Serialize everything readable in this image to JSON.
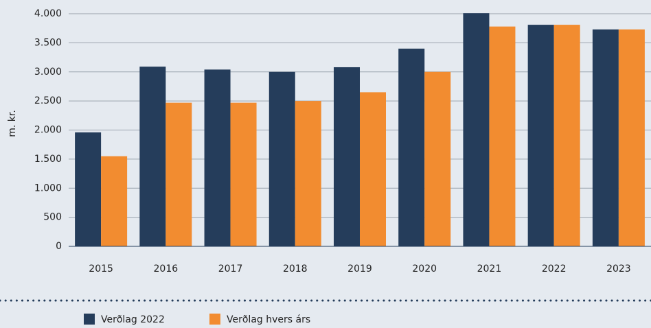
{
  "chart_data": {
    "type": "bar",
    "y_label": "m. kr.",
    "categories": [
      "2015",
      "2016",
      "2017",
      "2018",
      "2019",
      "2020",
      "2021",
      "2022",
      "2023"
    ],
    "series": [
      {
        "name": "Verðlag 2022",
        "color": "#253d5b",
        "values": [
          1960,
          3090,
          3040,
          3000,
          3080,
          3400,
          4010,
          3810,
          3730
        ]
      },
      {
        "name": "Verðlag hvers árs",
        "color": "#f28c30",
        "values": [
          1550,
          2470,
          2470,
          2500,
          2650,
          3000,
          3780,
          3810,
          3730
        ]
      }
    ],
    "ylim": [
      0,
      4000
    ],
    "yticks": [
      0,
      500,
      {
        "value": 1000,
        "label": "1.000"
      },
      {
        "value": 1500,
        "label": "1.500"
      },
      {
        "value": 2000,
        "label": "2.000"
      },
      {
        "value": 2500,
        "label": "2.500"
      },
      {
        "value": 3000,
        "label": "3.000"
      },
      {
        "value": 3500,
        "label": "3.500"
      },
      {
        "value": 4000,
        "label": "4.000"
      }
    ],
    "grid": true,
    "legend": "bottom-left"
  }
}
